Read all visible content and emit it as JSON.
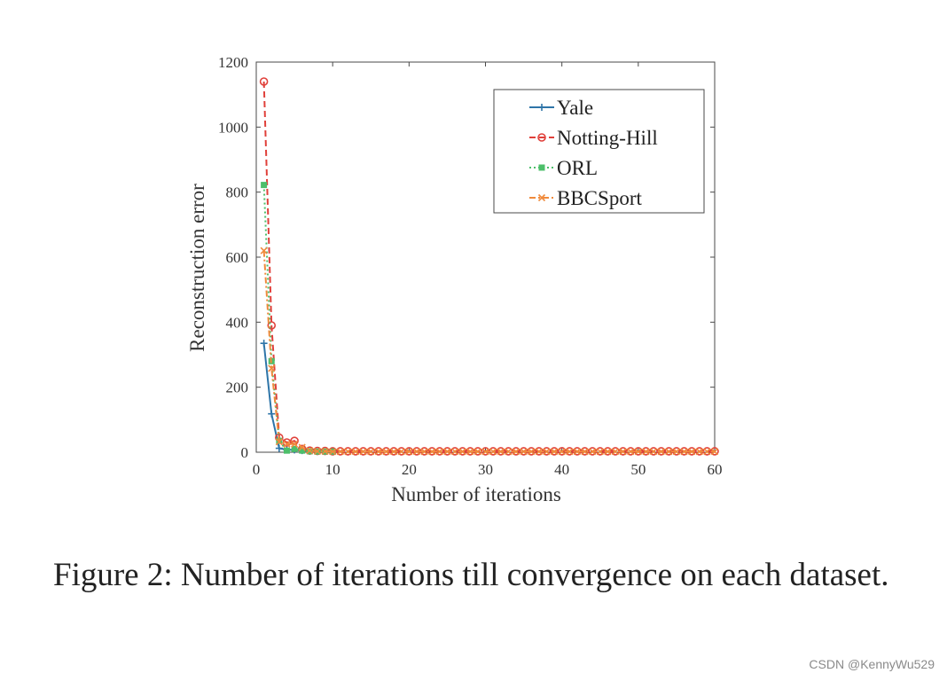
{
  "chart_data": {
    "type": "line",
    "xlabel": "Number of iterations",
    "ylabel": "Reconstruction error",
    "xlim": [
      0,
      60
    ],
    "ylim": [
      0,
      1200
    ],
    "xticks": [
      0,
      10,
      20,
      30,
      40,
      50,
      60
    ],
    "yticks": [
      0,
      200,
      400,
      600,
      800,
      1000,
      1200
    ],
    "grid": false,
    "legend_position": "top-right",
    "series": [
      {
        "name": "Yale",
        "color": "#2e75a8",
        "line_style": "solid",
        "marker": "plus",
        "x": [
          1,
          2,
          3,
          4,
          5,
          6
        ],
        "y": [
          335,
          118,
          12,
          8,
          7,
          5
        ]
      },
      {
        "name": "Notting-Hill",
        "color": "#e0403a",
        "line_style": "dashed",
        "marker": "circle",
        "x": [
          1,
          2,
          3,
          4,
          5,
          6,
          7,
          8,
          9,
          10,
          11,
          12,
          13,
          14,
          15,
          16,
          17,
          18,
          19,
          20,
          21,
          22,
          23,
          24,
          25,
          26,
          27,
          28,
          29,
          30,
          31,
          32,
          33,
          34,
          35,
          36,
          37,
          38,
          39,
          40,
          41,
          42,
          43,
          44,
          45,
          46,
          47,
          48,
          49,
          50,
          51,
          52,
          53,
          54,
          55,
          56,
          57,
          58,
          59,
          60
        ],
        "y": [
          1140,
          390,
          45,
          30,
          35,
          10,
          5,
          4,
          4,
          3,
          3,
          3,
          3,
          3,
          3,
          3,
          3,
          3,
          3,
          3,
          3,
          3,
          3,
          3,
          3,
          3,
          3,
          3,
          3,
          3,
          3,
          3,
          3,
          3,
          3,
          3,
          3,
          3,
          3,
          3,
          3,
          3,
          3,
          3,
          3,
          3,
          3,
          3,
          3,
          3,
          3,
          3,
          3,
          3,
          3,
          3,
          3,
          3,
          3,
          3
        ]
      },
      {
        "name": "ORL",
        "color": "#4dbf6a",
        "line_style": "dotted",
        "marker": "square",
        "x": [
          1,
          2,
          3,
          4,
          5,
          6,
          7,
          8,
          9,
          10
        ],
        "y": [
          822,
          280,
          35,
          5,
          10,
          5,
          3,
          2,
          2,
          2
        ]
      },
      {
        "name": "BBCSport",
        "color": "#f08a3c",
        "line_style": "dashdot",
        "marker": "x",
        "x": [
          1,
          2,
          3,
          4,
          5,
          6,
          7,
          8,
          9,
          10,
          11,
          12,
          13,
          14,
          15,
          16,
          17,
          18,
          19,
          20,
          21,
          22,
          23,
          24,
          25,
          26,
          27,
          28,
          29,
          30,
          31,
          32,
          33,
          34,
          35,
          36,
          37,
          38,
          39,
          40,
          41,
          42,
          43,
          44,
          45,
          46,
          47,
          48,
          49,
          50,
          51,
          52,
          53,
          54,
          55,
          56,
          57,
          58,
          59,
          60
        ],
        "y": [
          620,
          258,
          32,
          25,
          25,
          15,
          5,
          3,
          3,
          2,
          2,
          2,
          2,
          2,
          2,
          2,
          2,
          2,
          2,
          2,
          2,
          2,
          2,
          2,
          2,
          2,
          2,
          2,
          2,
          2,
          2,
          2,
          2,
          2,
          2,
          2,
          2,
          2,
          2,
          2,
          2,
          2,
          2,
          2,
          2,
          2,
          2,
          2,
          2,
          2,
          2,
          2,
          2,
          2,
          2,
          2,
          2,
          2,
          2,
          2
        ]
      }
    ]
  },
  "caption": "Figure 2: Number of iterations till convergence on each dataset.",
  "watermark": "CSDN @KennyWu529"
}
